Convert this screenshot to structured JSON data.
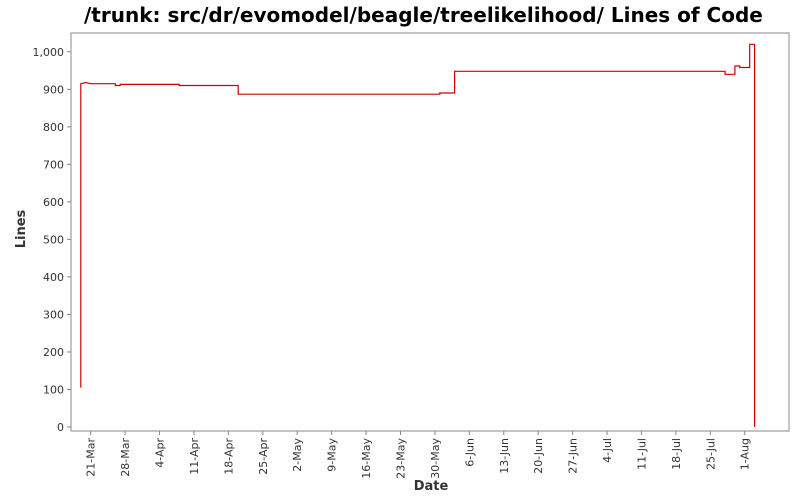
{
  "chart_data": {
    "type": "line",
    "title": "/trunk: src/dr/evomodel/beagle/treelikelihood/ Lines of Code",
    "xlabel": "Date",
    "ylabel": "Lines",
    "ylim": [
      0,
      1050
    ],
    "yticks": [
      0,
      100,
      200,
      300,
      400,
      500,
      600,
      700,
      800,
      900,
      1000
    ],
    "ytick_labels": [
      "0",
      "100",
      "200",
      "300",
      "400",
      "500",
      "600",
      "700",
      "800",
      "900",
      "1,000"
    ],
    "xlim": [
      "2009-03-17",
      "2009-08-10"
    ],
    "xticks": [
      "2009-03-21",
      "2009-03-28",
      "2009-04-04",
      "2009-04-11",
      "2009-04-18",
      "2009-04-25",
      "2009-05-02",
      "2009-05-09",
      "2009-05-16",
      "2009-05-23",
      "2009-05-30",
      "2009-06-06",
      "2009-06-13",
      "2009-06-20",
      "2009-06-27",
      "2009-07-04",
      "2009-07-11",
      "2009-07-18",
      "2009-07-25",
      "2009-08-01"
    ],
    "xtick_labels": [
      "21-Mar",
      "28-Mar",
      "4-Apr",
      "11-Apr",
      "18-Apr",
      "25-Apr",
      "2-May",
      "9-May",
      "16-May",
      "23-May",
      "30-May",
      "6-Jun",
      "13-Jun",
      "20-Jun",
      "27-Jun",
      "4-Jul",
      "11-Jul",
      "18-Jul",
      "25-Jul",
      "1-Aug"
    ],
    "grid": false,
    "series": [
      {
        "color": "#cc0000",
        "points": [
          [
            "2009-03-19",
            105
          ],
          [
            "2009-03-19",
            915
          ],
          [
            "2009-03-20",
            918
          ],
          [
            "2009-03-21",
            915
          ],
          [
            "2009-03-26",
            915
          ],
          [
            "2009-03-26",
            910
          ],
          [
            "2009-03-27",
            910
          ],
          [
            "2009-03-27",
            913
          ],
          [
            "2009-04-08",
            913
          ],
          [
            "2009-04-08",
            910
          ],
          [
            "2009-04-20",
            910
          ],
          [
            "2009-04-20",
            887
          ],
          [
            "2009-05-31",
            887
          ],
          [
            "2009-05-31",
            890
          ],
          [
            "2009-06-03",
            890
          ],
          [
            "2009-06-03",
            948
          ],
          [
            "2009-07-28",
            948
          ],
          [
            "2009-07-28",
            940
          ],
          [
            "2009-07-30",
            940
          ],
          [
            "2009-07-30",
            962
          ],
          [
            "2009-07-31",
            962
          ],
          [
            "2009-07-31",
            958
          ],
          [
            "2009-08-02",
            958
          ],
          [
            "2009-08-02",
            1020
          ],
          [
            "2009-08-03",
            1020
          ],
          [
            "2009-08-03",
            0
          ]
        ]
      }
    ]
  }
}
